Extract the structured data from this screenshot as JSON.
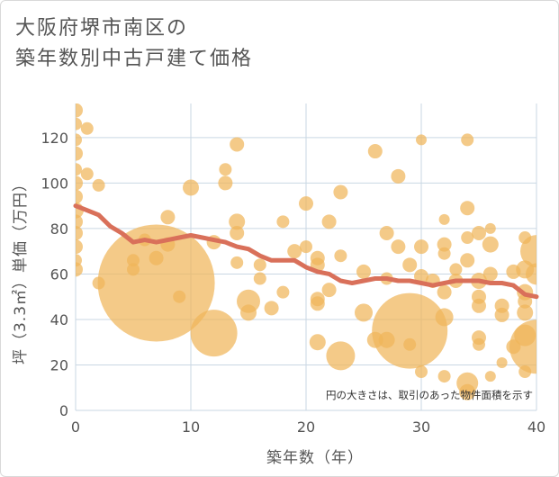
{
  "title": {
    "line1": "大阪府堺市南区の",
    "line2": "築年数別中古戸建て価格"
  },
  "chart_data": {
    "type": "scatter",
    "xlabel": "築年数（年）",
    "ylabel": "坪（3.3㎡）単価（万円）",
    "xlim": [
      0,
      40
    ],
    "ylim": [
      0,
      135
    ],
    "xticks": [
      0,
      10,
      20,
      30,
      40
    ],
    "yticks": [
      0,
      20,
      40,
      60,
      80,
      100,
      120
    ],
    "grid": true,
    "note": "円の大きさは、取引のあった物件面積を示す",
    "colors": {
      "bubble": "#f0b55a",
      "trend": "#d9705a",
      "grid": "#c9d7e3"
    },
    "bubbles": [
      {
        "x": 0,
        "y": 132,
        "r": 8
      },
      {
        "x": 0,
        "y": 126,
        "r": 7
      },
      {
        "x": 0,
        "y": 119,
        "r": 7
      },
      {
        "x": 0,
        "y": 113,
        "r": 8
      },
      {
        "x": 0,
        "y": 106,
        "r": 7
      },
      {
        "x": 0,
        "y": 100,
        "r": 8
      },
      {
        "x": 0,
        "y": 94,
        "r": 8
      },
      {
        "x": 0,
        "y": 88,
        "r": 9
      },
      {
        "x": 0,
        "y": 83,
        "r": 8
      },
      {
        "x": 0,
        "y": 78,
        "r": 8
      },
      {
        "x": 0,
        "y": 72,
        "r": 8
      },
      {
        "x": 0,
        "y": 66,
        "r": 7
      },
      {
        "x": 0,
        "y": 62,
        "r": 8
      },
      {
        "x": 1,
        "y": 124,
        "r": 7
      },
      {
        "x": 1,
        "y": 104,
        "r": 7
      },
      {
        "x": 2,
        "y": 99,
        "r": 7
      },
      {
        "x": 2,
        "y": 56,
        "r": 7
      },
      {
        "x": 5,
        "y": 66,
        "r": 7
      },
      {
        "x": 5,
        "y": 62,
        "r": 7
      },
      {
        "x": 6,
        "y": 75,
        "r": 7
      },
      {
        "x": 7,
        "y": 56,
        "r": 65
      },
      {
        "x": 7,
        "y": 67,
        "r": 8
      },
      {
        "x": 8,
        "y": 85,
        "r": 8
      },
      {
        "x": 8,
        "y": 73,
        "r": 8
      },
      {
        "x": 9,
        "y": 50,
        "r": 7
      },
      {
        "x": 10,
        "y": 98,
        "r": 9
      },
      {
        "x": 12,
        "y": 34,
        "r": 26
      },
      {
        "x": 12,
        "y": 74,
        "r": 8
      },
      {
        "x": 13,
        "y": 106,
        "r": 7
      },
      {
        "x": 13,
        "y": 100,
        "r": 8
      },
      {
        "x": 14,
        "y": 117,
        "r": 8
      },
      {
        "x": 14,
        "y": 83,
        "r": 9
      },
      {
        "x": 14,
        "y": 78,
        "r": 8
      },
      {
        "x": 14,
        "y": 65,
        "r": 7
      },
      {
        "x": 15,
        "y": 48,
        "r": 13
      },
      {
        "x": 15,
        "y": 43,
        "r": 9
      },
      {
        "x": 16,
        "y": 64,
        "r": 7
      },
      {
        "x": 16,
        "y": 58,
        "r": 7
      },
      {
        "x": 17,
        "y": 45,
        "r": 8
      },
      {
        "x": 18,
        "y": 52,
        "r": 7
      },
      {
        "x": 18,
        "y": 83,
        "r": 7
      },
      {
        "x": 19,
        "y": 70,
        "r": 8
      },
      {
        "x": 20,
        "y": 91,
        "r": 8
      },
      {
        "x": 20,
        "y": 72,
        "r": 7
      },
      {
        "x": 21,
        "y": 67,
        "r": 8
      },
      {
        "x": 21,
        "y": 64,
        "r": 8
      },
      {
        "x": 21,
        "y": 49,
        "r": 8
      },
      {
        "x": 21,
        "y": 47,
        "r": 8
      },
      {
        "x": 21,
        "y": 30,
        "r": 9
      },
      {
        "x": 22,
        "y": 83,
        "r": 8
      },
      {
        "x": 22,
        "y": 53,
        "r": 8
      },
      {
        "x": 23,
        "y": 96,
        "r": 8
      },
      {
        "x": 23,
        "y": 24,
        "r": 16
      },
      {
        "x": 23,
        "y": 68,
        "r": 7
      },
      {
        "x": 25,
        "y": 61,
        "r": 8
      },
      {
        "x": 25,
        "y": 43,
        "r": 10
      },
      {
        "x": 26,
        "y": 114,
        "r": 8
      },
      {
        "x": 26,
        "y": 31,
        "r": 9
      },
      {
        "x": 27,
        "y": 78,
        "r": 8
      },
      {
        "x": 27,
        "y": 58,
        "r": 7
      },
      {
        "x": 27,
        "y": 31,
        "r": 9
      },
      {
        "x": 28,
        "y": 103,
        "r": 8
      },
      {
        "x": 28,
        "y": 72,
        "r": 8
      },
      {
        "x": 29,
        "y": 64,
        "r": 8
      },
      {
        "x": 29,
        "y": 35,
        "r": 42
      },
      {
        "x": 29,
        "y": 29,
        "r": 7
      },
      {
        "x": 30,
        "y": 119,
        "r": 6
      },
      {
        "x": 30,
        "y": 72,
        "r": 8
      },
      {
        "x": 30,
        "y": 59,
        "r": 8
      },
      {
        "x": 30,
        "y": 17,
        "r": 7
      },
      {
        "x": 31,
        "y": 57,
        "r": 8
      },
      {
        "x": 32,
        "y": 84,
        "r": 6
      },
      {
        "x": 32,
        "y": 73,
        "r": 8
      },
      {
        "x": 32,
        "y": 69,
        "r": 7
      },
      {
        "x": 32,
        "y": 52,
        "r": 8
      },
      {
        "x": 32,
        "y": 41,
        "r": 10
      },
      {
        "x": 32,
        "y": 15,
        "r": 7
      },
      {
        "x": 33,
        "y": 62,
        "r": 7
      },
      {
        "x": 33,
        "y": 57,
        "r": 8
      },
      {
        "x": 34,
        "y": 119,
        "r": 7
      },
      {
        "x": 34,
        "y": 89,
        "r": 8
      },
      {
        "x": 34,
        "y": 76,
        "r": 7
      },
      {
        "x": 34,
        "y": 66,
        "r": 8
      },
      {
        "x": 34,
        "y": 12,
        "r": 12
      },
      {
        "x": 34,
        "y": 8,
        "r": 9
      },
      {
        "x": 35,
        "y": 78,
        "r": 8
      },
      {
        "x": 35,
        "y": 57,
        "r": 9
      },
      {
        "x": 35,
        "y": 50,
        "r": 8
      },
      {
        "x": 35,
        "y": 46,
        "r": 8
      },
      {
        "x": 35,
        "y": 32,
        "r": 8
      },
      {
        "x": 35,
        "y": 29,
        "r": 7
      },
      {
        "x": 36,
        "y": 80,
        "r": 6
      },
      {
        "x": 36,
        "y": 73,
        "r": 9
      },
      {
        "x": 36,
        "y": 60,
        "r": 8
      },
      {
        "x": 36,
        "y": 15,
        "r": 6
      },
      {
        "x": 37,
        "y": 46,
        "r": 8
      },
      {
        "x": 37,
        "y": 42,
        "r": 8
      },
      {
        "x": 37,
        "y": 21,
        "r": 6
      },
      {
        "x": 38,
        "y": 61,
        "r": 8
      },
      {
        "x": 38,
        "y": 28,
        "r": 8
      },
      {
        "x": 39,
        "y": 76,
        "r": 7
      },
      {
        "x": 39,
        "y": 62,
        "r": 10
      },
      {
        "x": 39,
        "y": 52,
        "r": 9
      },
      {
        "x": 39,
        "y": 48,
        "r": 8
      },
      {
        "x": 39,
        "y": 43,
        "r": 9
      },
      {
        "x": 39,
        "y": 33,
        "r": 12
      },
      {
        "x": 39,
        "y": 17,
        "r": 7
      },
      {
        "x": 40,
        "y": 70,
        "r": 18
      },
      {
        "x": 40,
        "y": 60,
        "r": 12
      },
      {
        "x": 40,
        "y": 28,
        "r": 30
      }
    ],
    "trend": [
      {
        "x": 0,
        "y": 90
      },
      {
        "x": 1,
        "y": 88
      },
      {
        "x": 2,
        "y": 86
      },
      {
        "x": 3,
        "y": 81
      },
      {
        "x": 4,
        "y": 78
      },
      {
        "x": 5,
        "y": 74
      },
      {
        "x": 6,
        "y": 75
      },
      {
        "x": 7,
        "y": 74
      },
      {
        "x": 8,
        "y": 75
      },
      {
        "x": 9,
        "y": 76
      },
      {
        "x": 10,
        "y": 77
      },
      {
        "x": 11,
        "y": 76
      },
      {
        "x": 12,
        "y": 75
      },
      {
        "x": 13,
        "y": 74
      },
      {
        "x": 14,
        "y": 72
      },
      {
        "x": 15,
        "y": 71
      },
      {
        "x": 16,
        "y": 68
      },
      {
        "x": 17,
        "y": 66
      },
      {
        "x": 18,
        "y": 66
      },
      {
        "x": 19,
        "y": 66
      },
      {
        "x": 20,
        "y": 63
      },
      {
        "x": 21,
        "y": 61
      },
      {
        "x": 22,
        "y": 60
      },
      {
        "x": 23,
        "y": 57
      },
      {
        "x": 24,
        "y": 56
      },
      {
        "x": 25,
        "y": 57
      },
      {
        "x": 26,
        "y": 58
      },
      {
        "x": 27,
        "y": 58
      },
      {
        "x": 28,
        "y": 57
      },
      {
        "x": 29,
        "y": 57
      },
      {
        "x": 30,
        "y": 56
      },
      {
        "x": 31,
        "y": 55
      },
      {
        "x": 32,
        "y": 56
      },
      {
        "x": 33,
        "y": 57
      },
      {
        "x": 34,
        "y": 57
      },
      {
        "x": 35,
        "y": 57
      },
      {
        "x": 36,
        "y": 56
      },
      {
        "x": 37,
        "y": 56
      },
      {
        "x": 38,
        "y": 55
      },
      {
        "x": 39,
        "y": 51
      },
      {
        "x": 40,
        "y": 50
      }
    ]
  }
}
